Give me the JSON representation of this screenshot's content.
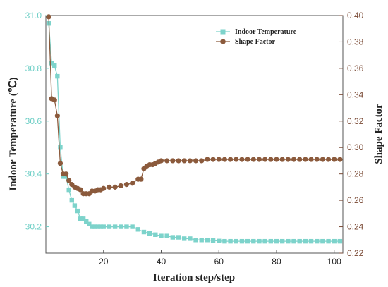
{
  "chart_data": {
    "type": "line",
    "xlabel": "Iteration step/step",
    "ylabel_left": "Indoor Temperature (℃)",
    "ylabel_right": "Shape Factor",
    "xlim": [
      0,
      103
    ],
    "ylim_left": [
      30.1,
      31.0
    ],
    "ylim_right": [
      0.22,
      0.4
    ],
    "xticks": [
      20,
      40,
      60,
      80,
      100
    ],
    "yticks_left": [
      "30.2",
      "30.4",
      "30.6",
      "30.8",
      "31.0"
    ],
    "yticks_left_values": [
      30.2,
      30.4,
      30.6,
      30.8,
      31.0
    ],
    "yticks_right": [
      "0.22",
      "0.24",
      "0.26",
      "0.28",
      "0.30",
      "0.32",
      "0.34",
      "0.36",
      "0.38",
      "0.40"
    ],
    "yticks_right_values": [
      0.22,
      0.24,
      0.26,
      0.28,
      0.3,
      0.32,
      0.34,
      0.36,
      0.38,
      0.4
    ],
    "legend_position": "top-right",
    "colors": {
      "left_axis": "#6ecfc6",
      "right_axis": "#7a4a35",
      "temperature": "#7dd3cb",
      "shape": "#8b5a3c"
    },
    "series": [
      {
        "name": "Indoor Temperature",
        "axis": "left",
        "marker": "square",
        "x": [
          1,
          2,
          3,
          4,
          5,
          6,
          7,
          8,
          9,
          10,
          11,
          12,
          13,
          14,
          15,
          16,
          17,
          18,
          19,
          20,
          22,
          24,
          26,
          28,
          30,
          32,
          34,
          36,
          38,
          40,
          42,
          44,
          46,
          48,
          50,
          52,
          54,
          56,
          58,
          60,
          62,
          64,
          66,
          68,
          70,
          72,
          74,
          76,
          78,
          80,
          82,
          84,
          86,
          88,
          90,
          92,
          94,
          96,
          98,
          100,
          102
        ],
        "y": [
          30.97,
          30.82,
          30.81,
          30.77,
          30.5,
          30.39,
          30.39,
          30.34,
          30.3,
          30.28,
          30.26,
          30.23,
          30.23,
          30.22,
          30.21,
          30.2,
          30.2,
          30.2,
          30.2,
          30.2,
          30.2,
          30.2,
          30.2,
          30.2,
          30.2,
          30.19,
          30.18,
          30.175,
          30.17,
          30.165,
          30.165,
          30.16,
          30.16,
          30.155,
          30.155,
          30.15,
          30.15,
          30.15,
          30.148,
          30.146,
          30.145,
          30.145,
          30.145,
          30.145,
          30.145,
          30.145,
          30.145,
          30.145,
          30.145,
          30.145,
          30.145,
          30.145,
          30.145,
          30.145,
          30.145,
          30.145,
          30.145,
          30.145,
          30.145,
          30.145,
          30.145
        ]
      },
      {
        "name": "Shape Factor",
        "axis": "right",
        "marker": "circle",
        "x": [
          1,
          2,
          3,
          4,
          5,
          6,
          7,
          8,
          9,
          10,
          11,
          12,
          13,
          14,
          15,
          16,
          17,
          18,
          19,
          20,
          22,
          24,
          26,
          28,
          30,
          32,
          33,
          34,
          35,
          36,
          37,
          38,
          39,
          40,
          42,
          44,
          46,
          48,
          50,
          52,
          54,
          56,
          58,
          60,
          62,
          64,
          66,
          68,
          70,
          72,
          74,
          76,
          78,
          80,
          82,
          84,
          86,
          88,
          90,
          92,
          94,
          96,
          98,
          100,
          102
        ],
        "y": [
          0.399,
          0.337,
          0.336,
          0.324,
          0.288,
          0.28,
          0.28,
          0.275,
          0.272,
          0.27,
          0.269,
          0.268,
          0.265,
          0.265,
          0.265,
          0.267,
          0.267,
          0.268,
          0.268,
          0.269,
          0.27,
          0.27,
          0.271,
          0.272,
          0.273,
          0.276,
          0.276,
          0.284,
          0.286,
          0.287,
          0.287,
          0.288,
          0.289,
          0.29,
          0.29,
          0.29,
          0.29,
          0.29,
          0.29,
          0.29,
          0.29,
          0.291,
          0.291,
          0.291,
          0.291,
          0.291,
          0.291,
          0.291,
          0.291,
          0.291,
          0.291,
          0.291,
          0.291,
          0.291,
          0.291,
          0.291,
          0.291,
          0.291,
          0.291,
          0.291,
          0.291,
          0.291,
          0.291,
          0.291,
          0.291
        ]
      }
    ]
  }
}
